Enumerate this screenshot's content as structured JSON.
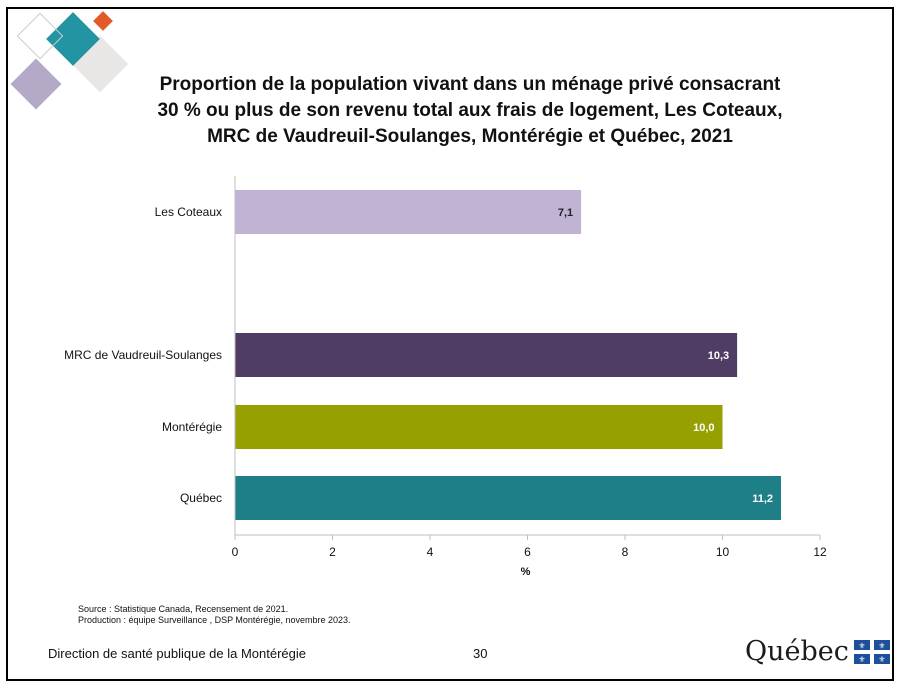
{
  "title_lines": [
    "Proportion de la population vivant dans un ménage privé consacrant",
    "30 % ou plus de son revenu total aux frais de logement, Les Coteaux,",
    "MRC de Vaudreuil-Soulanges, Montérégie et Québec, 2021"
  ],
  "chart_data": {
    "type": "bar",
    "orientation": "horizontal",
    "title": "Proportion de la population vivant dans un ménage privé consacrant 30 % ou plus de son revenu total aux frais de logement, Les Coteaux, MRC de Vaudreuil-Soulanges, Montérégie et Québec, 2021",
    "categories": [
      "Les Coteaux",
      "MRC de Vaudreuil-Soulanges",
      "Montérégie",
      "Québec"
    ],
    "values": [
      7.1,
      10.3,
      10.0,
      11.2
    ],
    "value_labels": [
      "7,1",
      "10,3",
      "10,0",
      "11,2"
    ],
    "colors": [
      "#c0b3d4",
      "#4f3d64",
      "#96a000",
      "#1e7f86"
    ],
    "label_colors": [
      "#222222",
      "#ffffff",
      "#ffffff",
      "#ffffff"
    ],
    "xlabel": "%",
    "ylabel": "",
    "xlim": [
      0,
      12
    ],
    "xticks": [
      0,
      2,
      4,
      6,
      8,
      10,
      12
    ],
    "grid": false,
    "legend": "none"
  },
  "notes": {
    "source": "Source : Statistique Canada, Recensement de 2021.",
    "production": "Production : équipe Surveillance , DSP Montérégie, novembre 2023."
  },
  "footer": {
    "organization": "Direction de santé publique de la Montérégie",
    "page_number": "30",
    "logo_text": "Québec"
  }
}
